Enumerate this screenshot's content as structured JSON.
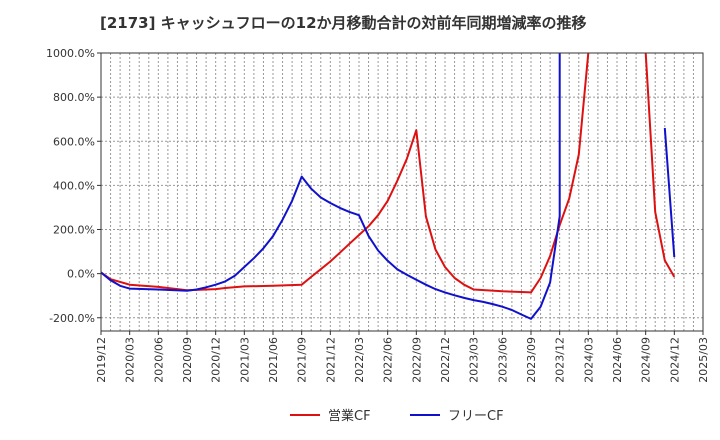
{
  "chart_data": {
    "type": "line",
    "title": "[2173]  キャッシュフローの12か月移動合計の対前年同期増減率の推移",
    "xlabel": "",
    "ylabel": "",
    "ylim": [
      -260,
      1000
    ],
    "yticks": [
      1000,
      800,
      600,
      400,
      200,
      0,
      -200
    ],
    "ytick_labels": [
      "1000.0%",
      "800.0%",
      "600.0%",
      "400.0%",
      "200.0%",
      "0.0%",
      "-200.0%"
    ],
    "xlim": [
      "2019/12",
      "2025/03"
    ],
    "xtick_labels": [
      "2019/12",
      "2020/03",
      "2020/06",
      "2020/09",
      "2020/12",
      "2021/03",
      "2021/06",
      "2021/09",
      "2021/12",
      "2022/03",
      "2022/06",
      "2022/09",
      "2022/12",
      "2023/03",
      "2023/06",
      "2023/09",
      "2023/12",
      "2024/03",
      "2024/06",
      "2024/09",
      "2024/12",
      "2025/03"
    ],
    "grid": true,
    "legend_position": "bottom-center",
    "series": [
      {
        "name": "営業CF",
        "color": "#dd1111",
        "points": [
          [
            "2019/12",
            5
          ],
          [
            "2020/01",
            -25
          ],
          [
            "2020/03",
            -50
          ],
          [
            "2020/06",
            -60
          ],
          [
            "2020/09",
            -75
          ],
          [
            "2020/12",
            -70
          ],
          [
            "2021/01",
            -65
          ],
          [
            "2021/03",
            -58
          ],
          [
            "2021/06",
            -55
          ],
          [
            "2021/09",
            -50
          ],
          [
            "2021/10",
            -15
          ],
          [
            "2021/11",
            20
          ],
          [
            "2021/12",
            55
          ],
          [
            "2022/01",
            95
          ],
          [
            "2022/02",
            135
          ],
          [
            "2022/03",
            175
          ],
          [
            "2022/04",
            215
          ],
          [
            "2022/05",
            265
          ],
          [
            "2022/06",
            330
          ],
          [
            "2022/07",
            420
          ],
          [
            "2022/08",
            520
          ],
          [
            "2022/09",
            650
          ],
          [
            "2022/10",
            260
          ],
          [
            "2022/11",
            110
          ],
          [
            "2022/12",
            30
          ],
          [
            "2023/01",
            -20
          ],
          [
            "2023/02",
            -50
          ],
          [
            "2023/03",
            -72
          ],
          [
            "2023/06",
            -80
          ],
          [
            "2023/09",
            -85
          ],
          [
            "2023/10",
            -20
          ],
          [
            "2023/11",
            80
          ],
          [
            "2023/12",
            220
          ],
          [
            "2024/01",
            340
          ],
          [
            "2024/02",
            540
          ],
          [
            "2024/03",
            1000
          ],
          [
            null,
            null
          ],
          [
            "2024/09",
            1000
          ],
          [
            "2024/10",
            280
          ],
          [
            "2024/11",
            60
          ],
          [
            "2024/12",
            -15
          ]
        ]
      },
      {
        "name": "フリーCF",
        "color": "#1111cc",
        "points": [
          [
            "2019/12",
            5
          ],
          [
            "2020/01",
            -30
          ],
          [
            "2020/02",
            -55
          ],
          [
            "2020/03",
            -68
          ],
          [
            "2020/06",
            -72
          ],
          [
            "2020/09",
            -78
          ],
          [
            "2020/10",
            -72
          ],
          [
            "2020/11",
            -62
          ],
          [
            "2020/12",
            -50
          ],
          [
            "2021/01",
            -35
          ],
          [
            "2021/02",
            -10
          ],
          [
            "2021/03",
            30
          ],
          [
            "2021/04",
            70
          ],
          [
            "2021/05",
            115
          ],
          [
            "2021/06",
            170
          ],
          [
            "2021/07",
            245
          ],
          [
            "2021/08",
            330
          ],
          [
            "2021/09",
            440
          ],
          [
            "2021/10",
            385
          ],
          [
            "2021/11",
            345
          ],
          [
            "2021/12",
            320
          ],
          [
            "2022/01",
            298
          ],
          [
            "2022/02",
            280
          ],
          [
            "2022/03",
            265
          ],
          [
            "2022/04",
            170
          ],
          [
            "2022/05",
            105
          ],
          [
            "2022/06",
            58
          ],
          [
            "2022/07",
            20
          ],
          [
            "2022/08",
            -5
          ],
          [
            "2022/09",
            -28
          ],
          [
            "2022/10",
            -50
          ],
          [
            "2022/11",
            -70
          ],
          [
            "2022/12",
            -85
          ],
          [
            "2023/01",
            -98
          ],
          [
            "2023/02",
            -110
          ],
          [
            "2023/03",
            -120
          ],
          [
            "2023/04",
            -128
          ],
          [
            "2023/05",
            -138
          ],
          [
            "2023/06",
            -150
          ],
          [
            "2023/07",
            -165
          ],
          [
            "2023/08",
            -185
          ],
          [
            "2023/09",
            -205
          ],
          [
            "2023/10",
            -150
          ],
          [
            "2023/11",
            -40
          ],
          [
            "2023/12",
            260
          ],
          [
            "2023/12",
            1000
          ],
          [
            null,
            null
          ],
          [
            "2024/11",
            660
          ],
          [
            "2024/12",
            75
          ]
        ]
      }
    ]
  }
}
